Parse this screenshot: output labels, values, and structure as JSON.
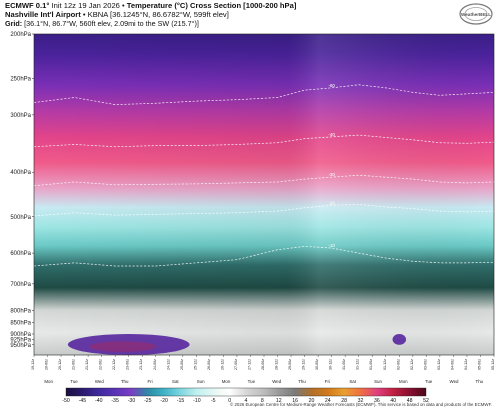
{
  "header": {
    "model": "ECMWF 0.1°",
    "init": " Init 12z 19 Jan 2026 • ",
    "product": "Temperature (°C) Cross Section [1000-200 hPa]",
    "station": "Nashville Int'l Airport",
    "station_meta": " • KBNA [36.1245°N, 86.6782°W, 599ft elev]",
    "grid_label": "Grid:",
    "grid_meta": " [36.1°N, 86.7°W, 560ft elev, 2.09mi to the SW (215.7°)]"
  },
  "logo_text": "WeatherBELL",
  "footer": "© 2026 European Centre for Medium-Range Weather Forecasts (ECMWF). This service is based on data and products of the ECMWF.",
  "colors": {
    "frame": "#222222",
    "isotherm": "#ffffff",
    "cold_pocket": "#5a2aa0",
    "warm_core": "#c02040"
  },
  "chart_data": {
    "type": "heatmap",
    "title": "Temperature (°C) Cross Section [1000-200 hPa]",
    "y_axis": {
      "scale": "log-pressure",
      "unit": "hPa",
      "range": [
        1000,
        200
      ],
      "ticks": [
        "200hPa",
        "250hPa",
        "300hPa",
        "400hPa",
        "500hPa",
        "600hPa",
        "700hPa",
        "800hPa",
        "850hPa",
        "900hPa",
        "925hPa",
        "950hPa"
      ],
      "tick_values": [
        200,
        250,
        300,
        400,
        500,
        600,
        700,
        800,
        850,
        900,
        925,
        950
      ]
    },
    "x_axis": {
      "dates": [
        "19-12z",
        "20-00z",
        "20-12z",
        "21-00z",
        "21-12z",
        "22-00z",
        "22-12z",
        "23-00z",
        "23-12z",
        "24-00z",
        "24-12z",
        "25-00z",
        "25-12z",
        "26-00z",
        "26-12z",
        "27-00z",
        "27-12z",
        "28-00z",
        "28-12z",
        "29-00z",
        "29-12z",
        "30-00z",
        "30-12z",
        "31-00z",
        "31-12z",
        "01-00z",
        "01-12z",
        "02-00z",
        "02-12z",
        "03-00z",
        "03-12z",
        "04-00z",
        "04-12z",
        "05-00z",
        "05-12z"
      ],
      "days": [
        "Mon",
        "Tue",
        "Wed",
        "Thu",
        "Fri",
        "Sat",
        "Sun",
        "Mon",
        "Tue",
        "Wed",
        "Thu",
        "Fri",
        "Sat",
        "Sun",
        "Mon",
        "Tue",
        "Wed",
        "Thu"
      ]
    },
    "isotherms": [
      {
        "label": "-60",
        "points": [
          [
            0,
            282
          ],
          [
            3,
            275
          ],
          [
            6,
            285
          ],
          [
            9,
            283
          ],
          [
            12,
            280
          ],
          [
            15,
            278
          ],
          [
            18,
            275
          ],
          [
            20,
            265
          ],
          [
            22,
            262
          ],
          [
            24,
            258
          ],
          [
            26,
            262
          ],
          [
            28,
            268
          ],
          [
            30,
            272
          ],
          [
            32,
            270
          ],
          [
            34,
            268
          ]
        ]
      },
      {
        "label": "-40",
        "points": [
          [
            0,
            352
          ],
          [
            3,
            348
          ],
          [
            6,
            352
          ],
          [
            9,
            350
          ],
          [
            12,
            350
          ],
          [
            15,
            348
          ],
          [
            18,
            345
          ],
          [
            20,
            338
          ],
          [
            22,
            335
          ],
          [
            24,
            332
          ],
          [
            26,
            336
          ],
          [
            28,
            340
          ],
          [
            30,
            345
          ],
          [
            32,
            346
          ],
          [
            34,
            344
          ]
        ]
      },
      {
        "label": "-30",
        "points": [
          [
            0,
            428
          ],
          [
            3,
            420
          ],
          [
            6,
            426
          ],
          [
            9,
            425
          ],
          [
            12,
            424
          ],
          [
            15,
            422
          ],
          [
            18,
            420
          ],
          [
            20,
            414
          ],
          [
            22,
            410
          ],
          [
            24,
            406
          ],
          [
            26,
            410
          ],
          [
            28,
            414
          ],
          [
            30,
            420
          ],
          [
            32,
            422
          ],
          [
            34,
            420
          ]
        ]
      },
      {
        "label": "-20",
        "points": [
          [
            0,
            498
          ],
          [
            3,
            490
          ],
          [
            6,
            496
          ],
          [
            9,
            494
          ],
          [
            12,
            492
          ],
          [
            15,
            490
          ],
          [
            18,
            486
          ],
          [
            20,
            478
          ],
          [
            22,
            472
          ],
          [
            24,
            470
          ],
          [
            26,
            476
          ],
          [
            28,
            480
          ],
          [
            30,
            486
          ],
          [
            32,
            488
          ],
          [
            34,
            486
          ]
        ]
      },
      {
        "label": "-10",
        "points": [
          [
            0,
            640
          ],
          [
            3,
            630
          ],
          [
            6,
            640
          ],
          [
            9,
            640
          ],
          [
            12,
            630
          ],
          [
            15,
            620
          ],
          [
            18,
            590
          ],
          [
            20,
            580
          ],
          [
            22,
            585
          ],
          [
            24,
            600
          ],
          [
            26,
            615
          ],
          [
            28,
            625
          ],
          [
            30,
            630
          ],
          [
            32,
            630
          ],
          [
            34,
            628
          ]
        ]
      }
    ],
    "cold_pockets": [
      {
        "label": "-20",
        "x_range": [
          2.5,
          11.5
        ],
        "p_range": [
          1000,
          900
        ],
        "min_temp": -20
      },
      {
        "label": "-5",
        "x_range": [
          26.5,
          27.5
        ],
        "p_range": [
          950,
          900
        ],
        "min_temp": -5
      }
    ],
    "colorbar": {
      "unit": "°C",
      "ticks": [
        -50,
        -45,
        -40,
        -35,
        -30,
        -25,
        -20,
        -15,
        -10,
        -5,
        0,
        4,
        8,
        12,
        16,
        20,
        24,
        28,
        32,
        36,
        40,
        48,
        52
      ],
      "colors": [
        "#1a0f3c",
        "#2a1b6e",
        "#3f2a9e",
        "#5a33b8",
        "#7a3fc4",
        "#2f8aa4",
        "#3fb3c7",
        "#7ed7e0",
        "#bff0f0",
        "#e4f7f4",
        "#ffffff",
        "#d7d7d7",
        "#bfbfbf",
        "#9a9a9a",
        "#7a7a7a",
        "#b0702a",
        "#d07a1a",
        "#e8a030",
        "#f07040",
        "#e04080",
        "#c02040",
        "#8a1030",
        "#4a0818"
      ]
    }
  }
}
